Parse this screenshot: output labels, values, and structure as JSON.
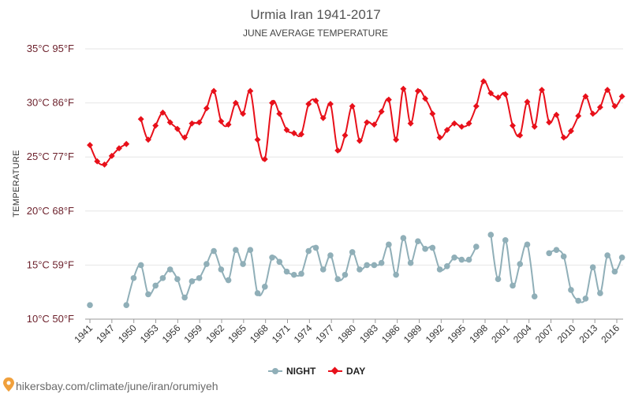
{
  "chart_data": {
    "type": "line",
    "title": "Urmia Iran 1941-2017",
    "subtitle": "JUNE AVERAGE TEMPERATURE",
    "ylabel": "TEMPERATURE",
    "ylim": [
      10,
      35
    ],
    "y_ticks": [
      {
        "value": 35,
        "label": "35°C 95°F"
      },
      {
        "value": 30,
        "label": "30°C 86°F"
      },
      {
        "value": 25,
        "label": "25°C 77°F"
      },
      {
        "value": 20,
        "label": "20°C 68°F"
      },
      {
        "value": 15,
        "label": "15°C 59°F"
      },
      {
        "value": 10,
        "label": "10°C 50°F"
      }
    ],
    "x_ticks": [
      "1941",
      "1947",
      "1950",
      "1953",
      "1956",
      "1959",
      "1962",
      "1965",
      "1968",
      "1971",
      "1974",
      "1977",
      "1980",
      "1983",
      "1986",
      "1989",
      "1992",
      "1995",
      "1998",
      "2001",
      "2004",
      "2007",
      "2010",
      "2013",
      "2016"
    ],
    "grid": true,
    "legend_position": "bottom",
    "series": [
      {
        "name": "NIGHT",
        "color": "#90afb8",
        "points": [
          [
            1941,
            11.3
          ],
          [
            1946,
            11.3
          ],
          [
            1947,
            13.8
          ],
          [
            1948,
            15.0
          ],
          [
            1949,
            12.3
          ],
          [
            1950,
            13.1
          ],
          [
            1951,
            13.8
          ],
          [
            1952,
            14.6
          ],
          [
            1953,
            13.7
          ],
          [
            1954,
            12.0
          ],
          [
            1955,
            13.5
          ],
          [
            1956,
            13.8
          ],
          [
            1957,
            15.1
          ],
          [
            1958,
            16.3
          ],
          [
            1959,
            14.6
          ],
          [
            1960,
            13.6
          ],
          [
            1961,
            16.4
          ],
          [
            1962,
            15.1
          ],
          [
            1963,
            16.4
          ],
          [
            1964,
            12.4
          ],
          [
            1965,
            13.0
          ],
          [
            1966,
            15.7
          ],
          [
            1967,
            15.3
          ],
          [
            1968,
            14.4
          ],
          [
            1969,
            14.1
          ],
          [
            1970,
            14.2
          ],
          [
            1971,
            16.3
          ],
          [
            1972,
            16.6
          ],
          [
            1973,
            14.6
          ],
          [
            1974,
            15.9
          ],
          [
            1975,
            13.7
          ],
          [
            1976,
            14.1
          ],
          [
            1977,
            16.2
          ],
          [
            1978,
            14.6
          ],
          [
            1979,
            15.0
          ],
          [
            1980,
            15.0
          ],
          [
            1981,
            15.2
          ],
          [
            1982,
            16.9
          ],
          [
            1983,
            14.1
          ],
          [
            1984,
            17.5
          ],
          [
            1985,
            15.2
          ],
          [
            1986,
            17.2
          ],
          [
            1987,
            16.5
          ],
          [
            1988,
            16.6
          ],
          [
            1989,
            14.6
          ],
          [
            1990,
            14.9
          ],
          [
            1991,
            15.7
          ],
          [
            1992,
            15.5
          ],
          [
            1993,
            15.5
          ],
          [
            1994,
            16.7
          ],
          [
            1996,
            17.8
          ],
          [
            1997,
            13.7
          ],
          [
            1998,
            17.3
          ],
          [
            1999,
            13.1
          ],
          [
            2000,
            15.1
          ],
          [
            2001,
            16.9
          ],
          [
            2002,
            12.1
          ],
          [
            2004,
            16.1
          ],
          [
            2005,
            16.4
          ],
          [
            2006,
            15.8
          ],
          [
            2007,
            12.7
          ],
          [
            2008,
            11.7
          ],
          [
            2009,
            11.9
          ],
          [
            2010,
            14.8
          ],
          [
            2011,
            12.4
          ],
          [
            2012,
            15.9
          ],
          [
            2013,
            14.4
          ],
          [
            2014,
            15.7
          ]
        ]
      },
      {
        "name": "DAY",
        "color": "#e8101a",
        "points": [
          [
            1941,
            26.1
          ],
          [
            1942,
            24.6
          ],
          [
            1943,
            24.3
          ],
          [
            1944,
            25.1
          ],
          [
            1945,
            25.8
          ],
          [
            1946,
            26.2
          ],
          [
            1948,
            28.5
          ],
          [
            1949,
            26.6
          ],
          [
            1950,
            27.9
          ],
          [
            1951,
            29.1
          ],
          [
            1952,
            28.2
          ],
          [
            1953,
            27.6
          ],
          [
            1954,
            26.8
          ],
          [
            1955,
            28.1
          ],
          [
            1956,
            28.2
          ],
          [
            1957,
            29.5
          ],
          [
            1958,
            31.1
          ],
          [
            1959,
            28.3
          ],
          [
            1960,
            28.0
          ],
          [
            1961,
            30.0
          ],
          [
            1962,
            29.0
          ],
          [
            1963,
            31.1
          ],
          [
            1964,
            26.6
          ],
          [
            1965,
            24.8
          ],
          [
            1966,
            30.0
          ],
          [
            1967,
            29.0
          ],
          [
            1968,
            27.5
          ],
          [
            1969,
            27.2
          ],
          [
            1970,
            27.1
          ],
          [
            1971,
            29.9
          ],
          [
            1972,
            30.2
          ],
          [
            1973,
            28.6
          ],
          [
            1974,
            29.9
          ],
          [
            1975,
            25.6
          ],
          [
            1976,
            27.0
          ],
          [
            1977,
            29.7
          ],
          [
            1978,
            26.5
          ],
          [
            1979,
            28.2
          ],
          [
            1980,
            28.0
          ],
          [
            1981,
            29.2
          ],
          [
            1982,
            30.3
          ],
          [
            1983,
            26.6
          ],
          [
            1984,
            31.3
          ],
          [
            1985,
            28.1
          ],
          [
            1986,
            31.1
          ],
          [
            1987,
            30.4
          ],
          [
            1988,
            29.0
          ],
          [
            1989,
            26.8
          ],
          [
            1990,
            27.5
          ],
          [
            1991,
            28.1
          ],
          [
            1992,
            27.8
          ],
          [
            1993,
            28.1
          ],
          [
            1994,
            29.7
          ],
          [
            1995,
            32.0
          ],
          [
            1996,
            30.9
          ],
          [
            1997,
            30.5
          ],
          [
            1998,
            30.8
          ],
          [
            1999,
            27.9
          ],
          [
            2000,
            27.0
          ],
          [
            2001,
            30.1
          ],
          [
            2002,
            27.8
          ],
          [
            2003,
            31.2
          ],
          [
            2004,
            28.2
          ],
          [
            2005,
            28.9
          ],
          [
            2006,
            26.8
          ],
          [
            2007,
            27.4
          ],
          [
            2008,
            28.8
          ],
          [
            2009,
            30.6
          ],
          [
            2010,
            29.0
          ],
          [
            2011,
            29.6
          ],
          [
            2012,
            31.2
          ],
          [
            2013,
            29.7
          ],
          [
            2014,
            30.6
          ]
        ]
      }
    ]
  },
  "footer": {
    "url_text": "hikersbay.com/climate/june/iran/orumiyeh",
    "pin_color": "#f0a03c"
  }
}
